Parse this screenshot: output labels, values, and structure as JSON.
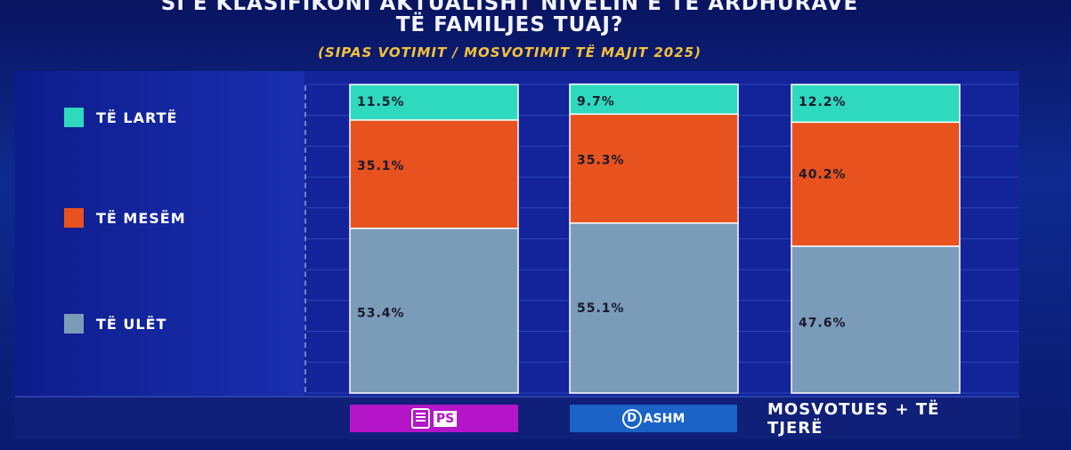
{
  "title_line1": "SI E KLASIFIKONI AKTUALISHT NIVELIN E TË ARDHURAVE",
  "title_line2": "TË FAMILJES TUAJ?",
  "subtitle": "(SIPAS VOTIMIT / MOSVOTIMIT TË MAJIT 2025)",
  "legend": [
    {
      "label": "TË LARTË",
      "color": "#2ed9be"
    },
    {
      "label": "TË MESËM",
      "color": "#e8521f"
    },
    {
      "label": "TË ULËT",
      "color": "#7b9cb9"
    }
  ],
  "categories_display": {
    "ps": "PS",
    "pd": "ASHM",
    "pd_logo": "D",
    "other": "MOSVOTUES + TË TJERË"
  },
  "chart_data": {
    "type": "bar",
    "stacked": true,
    "categories": [
      "PS",
      "PD-ASHM",
      "MOSVOTUES + TË TJERË"
    ],
    "series": [
      {
        "name": "TË ULËT",
        "color": "#7b9cb9",
        "values": [
          53.4,
          55.1,
          47.6
        ],
        "labels": [
          "53.4%",
          "55.1%",
          "47.6%"
        ]
      },
      {
        "name": "TË MESËM",
        "color": "#e8521f",
        "values": [
          35.1,
          35.3,
          40.2
        ],
        "labels": [
          "35.1%",
          "35.3%",
          "40.2%"
        ]
      },
      {
        "name": "TË LARTË",
        "color": "#2ed9be",
        "values": [
          11.5,
          9.7,
          12.2
        ],
        "labels": [
          "11.5%",
          "9.7%",
          "12.2%"
        ]
      }
    ],
    "ylim": [
      0,
      100
    ],
    "grid": true,
    "legend_position": "left"
  }
}
